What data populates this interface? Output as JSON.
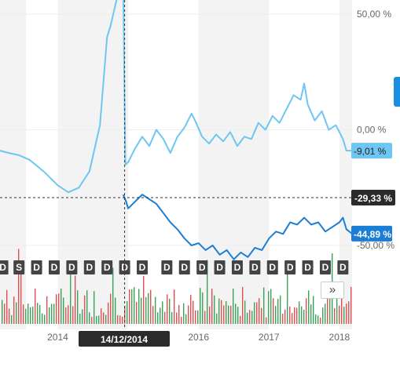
{
  "chart_data": {
    "type": "line",
    "y_axis": {
      "unit": "%",
      "ticks": [
        {
          "value": 50,
          "label": "50,00 %"
        },
        {
          "value": 0,
          "label": "0,00 %"
        },
        {
          "value": -50,
          "label": "-50,00 %"
        }
      ],
      "range": [
        -56,
        66
      ]
    },
    "x_axis": {
      "ticks": [
        {
          "value": 2014.0,
          "label": "2014"
        },
        {
          "value": 2016.0,
          "label": "2016"
        },
        {
          "value": 2017.0,
          "label": "2017"
        },
        {
          "value": 2018.0,
          "label": "2018"
        }
      ],
      "range": [
        2013.18,
        2018.18
      ],
      "shaded_bands": [
        [
          2013.18,
          2013.55
        ],
        [
          2014.0,
          2015.0
        ],
        [
          2016.0,
          2017.0
        ],
        [
          2018.0,
          2018.18
        ]
      ]
    },
    "crosshair": {
      "date_label": "14/12/2014",
      "x": 2014.95,
      "value_label": "-29,33 %",
      "y": -29.33
    },
    "series": [
      {
        "color": "#6ec6f2",
        "last_label": "-9,01 %",
        "points": [
          [
            2013.18,
            -9
          ],
          [
            2013.3,
            -10
          ],
          [
            2013.45,
            -11
          ],
          [
            2013.6,
            -13
          ],
          [
            2013.8,
            -18
          ],
          [
            2014.0,
            -24
          ],
          [
            2014.15,
            -27
          ],
          [
            2014.3,
            -25
          ],
          [
            2014.45,
            -18
          ],
          [
            2014.6,
            2
          ],
          [
            2014.7,
            40
          ],
          [
            2014.75,
            45
          ],
          [
            2014.85,
            58
          ],
          [
            2014.93,
            62
          ],
          [
            2014.96,
            -15
          ],
          [
            2015.0,
            -14
          ],
          [
            2015.1,
            -8
          ],
          [
            2015.2,
            -3
          ],
          [
            2015.3,
            -7
          ],
          [
            2015.4,
            0
          ],
          [
            2015.5,
            -4
          ],
          [
            2015.6,
            -10
          ],
          [
            2015.7,
            -3
          ],
          [
            2015.8,
            1
          ],
          [
            2015.9,
            7
          ],
          [
            2015.95,
            4
          ],
          [
            2016.05,
            -3
          ],
          [
            2016.15,
            -6
          ],
          [
            2016.25,
            -2
          ],
          [
            2016.35,
            -5
          ],
          [
            2016.45,
            -1
          ],
          [
            2016.55,
            -7
          ],
          [
            2016.65,
            -3
          ],
          [
            2016.75,
            -4
          ],
          [
            2016.85,
            3
          ],
          [
            2016.95,
            0
          ],
          [
            2017.05,
            6
          ],
          [
            2017.15,
            3
          ],
          [
            2017.25,
            9
          ],
          [
            2017.35,
            15
          ],
          [
            2017.45,
            13
          ],
          [
            2017.5,
            20
          ],
          [
            2017.55,
            11
          ],
          [
            2017.65,
            4
          ],
          [
            2017.75,
            8
          ],
          [
            2017.85,
            0
          ],
          [
            2017.95,
            2
          ],
          [
            2018.05,
            -4
          ],
          [
            2018.1,
            -9
          ],
          [
            2018.18,
            -9.01
          ]
        ]
      },
      {
        "color": "#1a7fd4",
        "last_label": "-44,89 %",
        "points": [
          [
            2014.93,
            -28
          ],
          [
            2014.97,
            -31
          ],
          [
            2015.0,
            -34
          ],
          [
            2015.1,
            -31
          ],
          [
            2015.2,
            -28
          ],
          [
            2015.3,
            -30
          ],
          [
            2015.4,
            -32
          ],
          [
            2015.5,
            -36
          ],
          [
            2015.6,
            -40
          ],
          [
            2015.7,
            -43
          ],
          [
            2015.8,
            -47
          ],
          [
            2015.9,
            -50
          ],
          [
            2016.0,
            -49
          ],
          [
            2016.1,
            -52
          ],
          [
            2016.2,
            -50
          ],
          [
            2016.3,
            -54
          ],
          [
            2016.4,
            -52
          ],
          [
            2016.5,
            -56
          ],
          [
            2016.6,
            -53
          ],
          [
            2016.7,
            -55
          ],
          [
            2016.8,
            -51
          ],
          [
            2016.9,
            -52
          ],
          [
            2017.0,
            -47
          ],
          [
            2017.1,
            -44
          ],
          [
            2017.2,
            -45
          ],
          [
            2017.3,
            -40
          ],
          [
            2017.4,
            -41
          ],
          [
            2017.5,
            -38
          ],
          [
            2017.6,
            -41
          ],
          [
            2017.7,
            -40
          ],
          [
            2017.8,
            -44
          ],
          [
            2017.9,
            -42
          ],
          [
            2018.0,
            -40
          ],
          [
            2018.05,
            -38
          ],
          [
            2018.1,
            -43
          ],
          [
            2018.18,
            -44.89
          ]
        ]
      }
    ],
    "event_markers": [
      {
        "label": "D",
        "x": 2013.22
      },
      {
        "label": "S",
        "x": 2013.45
      },
      {
        "label": "D",
        "x": 2013.7
      },
      {
        "label": "D",
        "x": 2013.95
      },
      {
        "label": "D",
        "x": 2014.2
      },
      {
        "label": "D",
        "x": 2014.45
      },
      {
        "label": "D",
        "x": 2014.7
      },
      {
        "label": "D",
        "x": 2014.95
      },
      {
        "label": "D",
        "x": 2015.2
      },
      {
        "label": "D",
        "x": 2015.55
      },
      {
        "label": "D",
        "x": 2015.8
      },
      {
        "label": "D",
        "x": 2016.05
      },
      {
        "label": "D",
        "x": 2016.3
      },
      {
        "label": "D",
        "x": 2016.55
      },
      {
        "label": "D",
        "x": 2016.8
      },
      {
        "label": "D",
        "x": 2017.05
      },
      {
        "label": "D",
        "x": 2017.3
      },
      {
        "label": "D",
        "x": 2017.55
      },
      {
        "label": "D",
        "x": 2017.8
      },
      {
        "label": "D",
        "x": 2018.05
      }
    ],
    "volume": {
      "up_color": "#3aa35a",
      "down_color": "#e05050"
    }
  },
  "controls": {
    "scroll_label": "»"
  }
}
